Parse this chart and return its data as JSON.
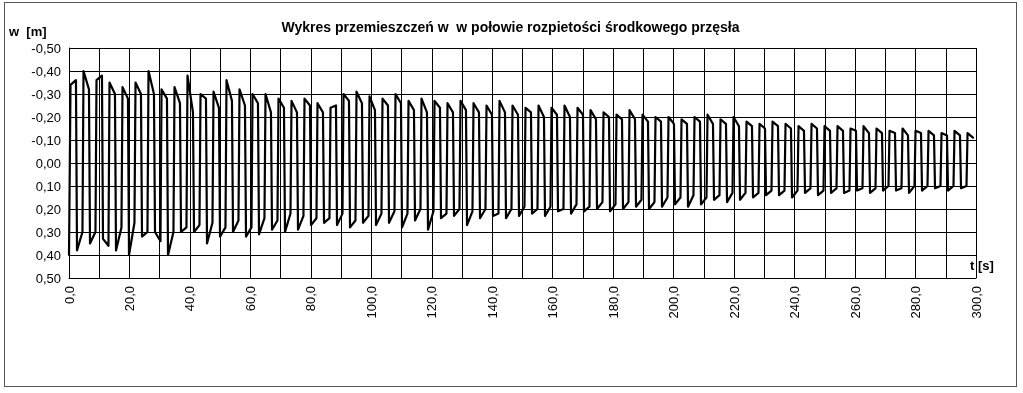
{
  "chart_data": {
    "type": "line",
    "title": "Wykres przemieszczeń w  w połowie rozpietości środkowego przęsła",
    "ylabel": "w  [m]",
    "xlabel": "t [s]",
    "xlim": [
      0,
      300
    ],
    "xticks": [
      {
        "value": 0,
        "label": "0,0"
      },
      {
        "value": 10,
        "label": null
      },
      {
        "value": 20,
        "label": "20,0"
      },
      {
        "value": 30,
        "label": null
      },
      {
        "value": 40,
        "label": "40,0"
      },
      {
        "value": 50,
        "label": null
      },
      {
        "value": 60,
        "label": "60,0"
      },
      {
        "value": 70,
        "label": null
      },
      {
        "value": 80,
        "label": "80,0"
      },
      {
        "value": 90,
        "label": null
      },
      {
        "value": 100,
        "label": "100,0"
      },
      {
        "value": 110,
        "label": null
      },
      {
        "value": 120,
        "label": "120,0"
      },
      {
        "value": 130,
        "label": null
      },
      {
        "value": 140,
        "label": "140,0"
      },
      {
        "value": 150,
        "label": null
      },
      {
        "value": 160,
        "label": "160,0"
      },
      {
        "value": 170,
        "label": null
      },
      {
        "value": 180,
        "label": "180,0"
      },
      {
        "value": 190,
        "label": null
      },
      {
        "value": 200,
        "label": "200,0"
      },
      {
        "value": 210,
        "label": null
      },
      {
        "value": 220,
        "label": "220,0"
      },
      {
        "value": 230,
        "label": null
      },
      {
        "value": 240,
        "label": "240,0"
      },
      {
        "value": 250,
        "label": null
      },
      {
        "value": 260,
        "label": "260,0"
      },
      {
        "value": 270,
        "label": null
      },
      {
        "value": 280,
        "label": "280,0"
      },
      {
        "value": 290,
        "label": null
      },
      {
        "value": 300,
        "label": "300,0"
      }
    ],
    "ylim": [
      0.5,
      -0.5
    ],
    "yticks": [
      {
        "value": -0.5,
        "label": "-0,50"
      },
      {
        "value": -0.4,
        "label": "-0,40"
      },
      {
        "value": -0.3,
        "label": "-0,30"
      },
      {
        "value": -0.2,
        "label": "-0,20"
      },
      {
        "value": -0.1,
        "label": "-0,10"
      },
      {
        "value": 0,
        "label": "0,00"
      },
      {
        "value": 0.1,
        "label": "0,10"
      },
      {
        "value": 0.2,
        "label": "0,20"
      },
      {
        "value": 0.3,
        "label": "0,30"
      },
      {
        "value": 0.4,
        "label": "0,40"
      },
      {
        "value": 0.5,
        "label": "0,50"
      }
    ],
    "grid": true,
    "marker": "none",
    "line_style": "solid",
    "series": [
      {
        "color": "#000000",
        "x": [
          0,
          0.5,
          2.3,
          2.65,
          4.45,
          4.8,
          6.6,
          6.95,
          8.75,
          9.1,
          10.9,
          11.25,
          13.05,
          13.4,
          15.2,
          15.55,
          17.35,
          17.7,
          19.5,
          19.85,
          21.65,
          22.0,
          23.8,
          24.15,
          25.95,
          26.3,
          28.1,
          28.45,
          30.25,
          30.6,
          32.4,
          32.75,
          34.55,
          34.9,
          36.7,
          37.05,
          38.85,
          39.2,
          41.0,
          41.35,
          43.15,
          43.5,
          45.3,
          45.65,
          47.45,
          47.8,
          49.6,
          49.95,
          51.75,
          52.1,
          53.9,
          54.25,
          56.05,
          56.4,
          58.2,
          58.55,
          60.35,
          60.7,
          62.5,
          62.85,
          64.65,
          65.0,
          66.8,
          67.15,
          68.95,
          69.3,
          71.1,
          71.45,
          73.25,
          73.6,
          75.4,
          75.75,
          77.55,
          77.9,
          79.7,
          80.05,
          81.85,
          82.2,
          84.0,
          84.35,
          86.15,
          86.5,
          88.3,
          88.65,
          90.45,
          90.8,
          92.6,
          92.95,
          94.75,
          95.1,
          96.9,
          97.25,
          99.05,
          99.4,
          101.2,
          101.55,
          103.35,
          103.7,
          105.5,
          105.85,
          107.65,
          108.0,
          109.8,
          110.15,
          111.95,
          112.3,
          114.1,
          114.45,
          116.25,
          116.6,
          118.4,
          118.75,
          120.55,
          120.9,
          122.7,
          123.05,
          124.85,
          125.2,
          127.0,
          127.35,
          129.15,
          129.5,
          131.3,
          131.65,
          133.45,
          133.8,
          135.6,
          135.95,
          137.75,
          138.1,
          139.9,
          140.25,
          142.05,
          142.4,
          144.2,
          144.55,
          146.35,
          146.7,
          148.5,
          148.85,
          150.65,
          151.0,
          152.8,
          153.15,
          154.95,
          155.3,
          157.1,
          157.45,
          159.25,
          159.6,
          161.4,
          161.75,
          163.55,
          163.9,
          165.7,
          166.05,
          167.85,
          168.2,
          170.0,
          170.35,
          172.15,
          172.5,
          174.3,
          174.65,
          176.45,
          176.8,
          178.6,
          178.95,
          180.75,
          181.1,
          182.9,
          183.25,
          185.05,
          185.4,
          187.2,
          187.55,
          189.35,
          189.7,
          191.5,
          191.85,
          193.65,
          194.0,
          195.8,
          196.15,
          197.95,
          198.3,
          200.1,
          200.45,
          202.25,
          202.6,
          204.4,
          204.75,
          206.55,
          206.9,
          208.7,
          209.05,
          210.85,
          211.2,
          213.0,
          213.35,
          215.15,
          215.5,
          217.3,
          217.65,
          219.45,
          219.8,
          221.6,
          221.95,
          223.75,
          224.1,
          225.9,
          226.25,
          228.05,
          228.4,
          230.2,
          230.55,
          232.35,
          232.7,
          234.5,
          234.85,
          236.65,
          237.0,
          238.8,
          239.15,
          240.95,
          241.3,
          243.1,
          243.45,
          245.25,
          245.6,
          247.4,
          247.75,
          249.55,
          249.9,
          251.7,
          252.05,
          253.85,
          254.2,
          256.0,
          256.35,
          258.15,
          258.5,
          260.3,
          260.65,
          262.45,
          262.8,
          264.6,
          264.95,
          266.75,
          267.1,
          268.9,
          269.25,
          271.05,
          271.4,
          273.2,
          273.55,
          275.35,
          275.7,
          277.5,
          277.85,
          279.65,
          280.0,
          281.8,
          282.15,
          283.95,
          284.3,
          286.1,
          286.45,
          288.25,
          288.6,
          290.4,
          290.75,
          292.55,
          292.9,
          294.7,
          295.05,
          296.85,
          297.2,
          299.0
        ],
        "values": [
          0.4,
          -0.34,
          -0.36,
          0.38,
          0.3,
          -0.4,
          -0.32,
          0.35,
          0.3,
          -0.36,
          -0.38,
          0.33,
          0.36,
          -0.35,
          -0.3,
          0.38,
          0.28,
          -0.33,
          -0.28,
          0.4,
          0.26,
          -0.35,
          -0.3,
          0.32,
          0.3,
          -0.4,
          -0.3,
          0.3,
          0.34,
          -0.32,
          -0.28,
          0.4,
          0.3,
          -0.33,
          -0.26,
          0.3,
          0.28,
          -0.38,
          -0.22,
          0.3,
          0.27,
          -0.3,
          -0.28,
          0.35,
          0.26,
          -0.31,
          -0.24,
          0.32,
          0.28,
          -0.36,
          -0.27,
          0.3,
          0.25,
          -0.32,
          -0.25,
          0.32,
          0.28,
          -0.3,
          -0.26,
          0.31,
          0.24,
          -0.3,
          -0.22,
          0.29,
          0.25,
          -0.28,
          -0.24,
          0.3,
          0.22,
          -0.27,
          -0.22,
          0.29,
          0.23,
          -0.28,
          -0.25,
          0.27,
          0.24,
          -0.26,
          -0.22,
          0.26,
          0.24,
          -0.24,
          -0.25,
          0.27,
          0.22,
          -0.3,
          -0.27,
          0.28,
          0.25,
          -0.31,
          -0.26,
          0.26,
          0.23,
          -0.29,
          -0.23,
          0.27,
          0.22,
          -0.28,
          -0.25,
          0.26,
          0.21,
          -0.3,
          -0.26,
          0.28,
          0.22,
          -0.27,
          -0.23,
          0.25,
          0.2,
          -0.28,
          -0.22,
          0.29,
          0.21,
          -0.27,
          -0.24,
          0.24,
          0.22,
          -0.26,
          -0.22,
          0.23,
          0.2,
          -0.27,
          -0.23,
          0.27,
          0.21,
          -0.26,
          -0.22,
          0.24,
          0.2,
          -0.25,
          -0.21,
          0.23,
          0.22,
          -0.27,
          -0.22,
          0.24,
          0.2,
          -0.25,
          -0.21,
          0.23,
          0.19,
          -0.24,
          -0.22,
          0.22,
          0.2,
          -0.25,
          -0.2,
          0.23,
          0.19,
          -0.24,
          -0.21,
          0.21,
          0.2,
          -0.25,
          -0.2,
          0.22,
          0.18,
          -0.24,
          -0.21,
          0.21,
          0.19,
          -0.23,
          -0.19,
          0.2,
          0.17,
          -0.22,
          -0.2,
          0.21,
          0.18,
          -0.21,
          -0.19,
          0.2,
          0.17,
          -0.23,
          -0.19,
          0.19,
          0.16,
          -0.21,
          -0.18,
          0.2,
          0.17,
          -0.2,
          -0.18,
          0.19,
          0.15,
          -0.2,
          -0.17,
          0.18,
          0.15,
          -0.19,
          -0.17,
          0.19,
          0.14,
          -0.2,
          -0.18,
          0.18,
          0.15,
          -0.21,
          -0.17,
          0.16,
          0.14,
          -0.19,
          -0.17,
          0.17,
          0.13,
          -0.2,
          -0.16,
          0.16,
          0.13,
          -0.18,
          -0.16,
          0.15,
          0.13,
          -0.17,
          -0.15,
          0.14,
          0.12,
          -0.18,
          -0.16,
          0.14,
          0.12,
          -0.17,
          -0.15,
          0.15,
          0.12,
          -0.16,
          -0.14,
          0.13,
          0.11,
          -0.17,
          -0.15,
          0.14,
          0.12,
          -0.16,
          -0.14,
          0.13,
          0.11,
          -0.16,
          -0.14,
          0.13,
          0.12,
          -0.15,
          -0.14,
          0.12,
          0.11,
          -0.16,
          -0.13,
          0.13,
          0.11,
          -0.15,
          -0.13,
          0.12,
          0.1,
          -0.14,
          -0.13,
          0.12,
          0.11,
          -0.15,
          -0.12,
          0.13,
          0.1,
          -0.14,
          -0.13,
          0.12,
          0.1,
          -0.14,
          -0.12,
          0.11,
          0.1,
          -0.13,
          -0.12,
          0.12,
          0.1,
          -0.14,
          -0.12,
          0.11,
          0.1,
          -0.13,
          -0.11
        ]
      }
    ]
  }
}
